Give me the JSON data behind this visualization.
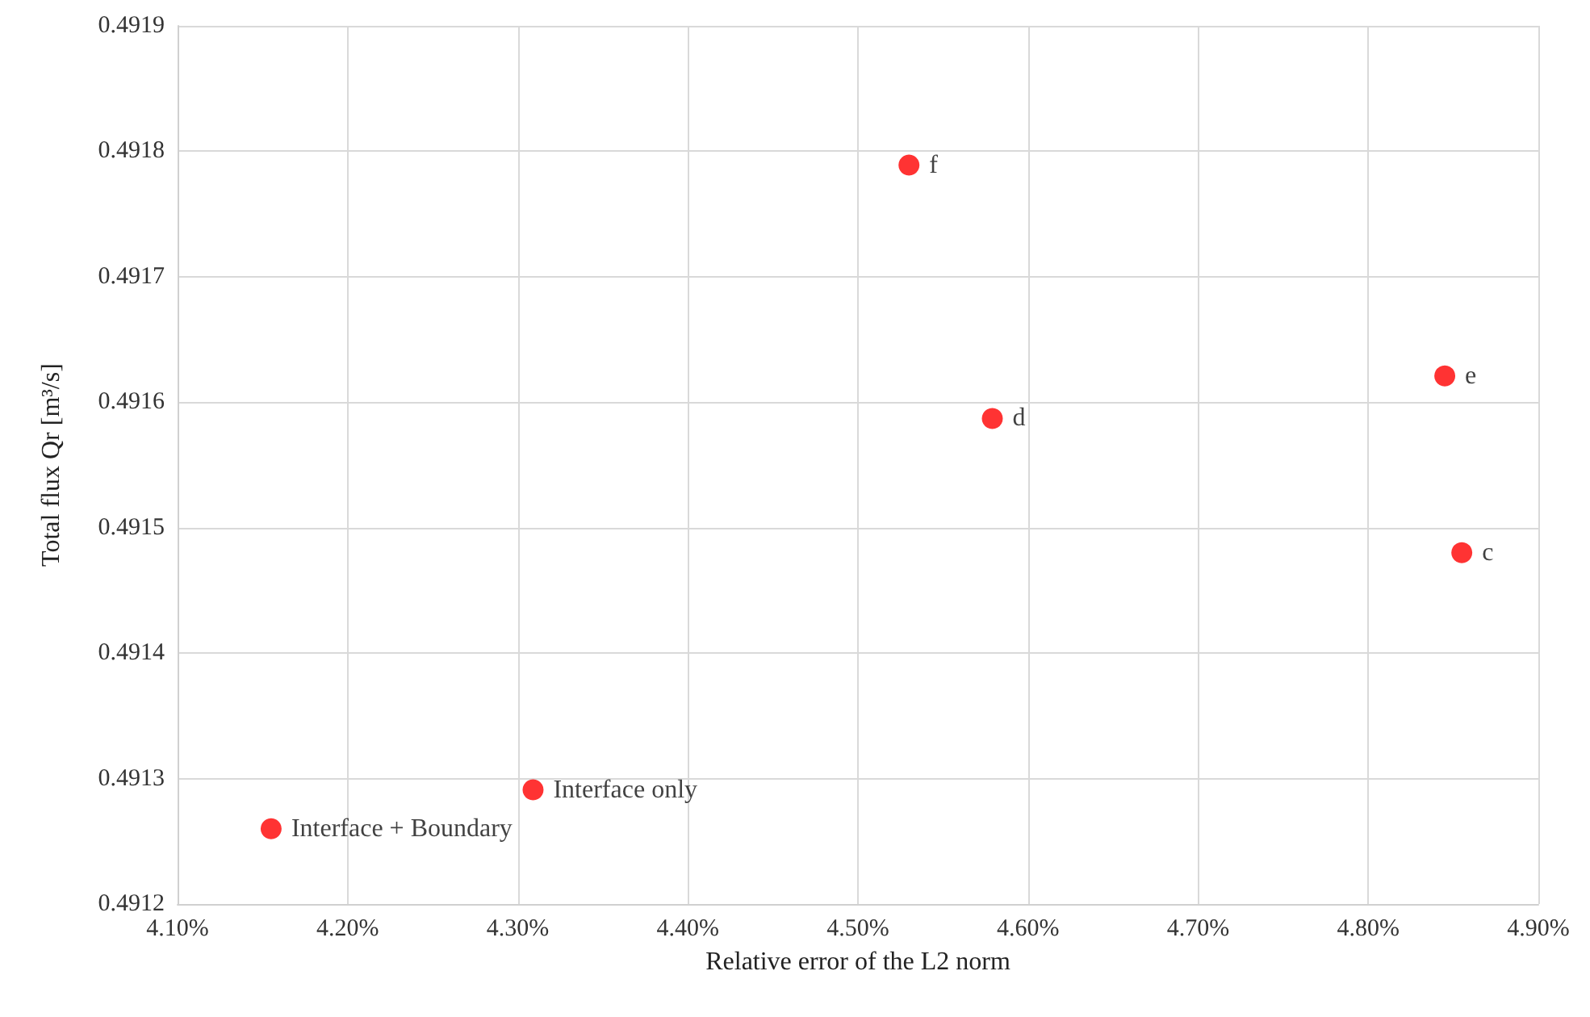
{
  "chart_data": {
    "type": "scatter",
    "xlabel": "Relative error of the L2 norm",
    "ylabel": "Total flux Qr [m³/s]",
    "x": [
      4.155,
      4.309,
      4.579,
      4.845,
      4.855,
      4.53
    ],
    "series": [
      {
        "color": "#ff0000",
        "values": [
          0.49126,
          0.491291,
          0.491587,
          0.491621,
          0.49148,
          0.491789
        ],
        "value_labels": [
          "Interface + Boundary",
          "Interface only",
          "d",
          "e",
          "c",
          "f"
        ]
      }
    ],
    "xlim": [
      4.1,
      4.9
    ],
    "xticks": [
      {
        "value": 4.1,
        "label": "4.10%"
      },
      {
        "value": 4.2,
        "label": "4.20%"
      },
      {
        "value": 4.3,
        "label": "4.30%"
      },
      {
        "value": 4.4,
        "label": "4.40%"
      },
      {
        "value": 4.5,
        "label": "4.50%"
      },
      {
        "value": 4.6,
        "label": "4.60%"
      },
      {
        "value": 4.7,
        "label": "4.70%"
      },
      {
        "value": 4.8,
        "label": "4.80%"
      },
      {
        "value": 4.9,
        "label": "4.90%"
      }
    ],
    "ylim": [
      0.4912,
      0.4919
    ],
    "yticks": [
      {
        "value": 0.4912,
        "label": "0.4912"
      },
      {
        "value": 0.4913,
        "label": "0.4913"
      },
      {
        "value": 0.4914,
        "label": "0.4914"
      },
      {
        "value": 0.4915,
        "label": "0.4915"
      },
      {
        "value": 0.4916,
        "label": "0.4916"
      },
      {
        "value": 0.4917,
        "label": "0.4917"
      },
      {
        "value": 0.4918,
        "label": "0.4918"
      },
      {
        "value": 0.4919,
        "label": "0.4919"
      }
    ],
    "grid": true,
    "marker": "circle"
  }
}
